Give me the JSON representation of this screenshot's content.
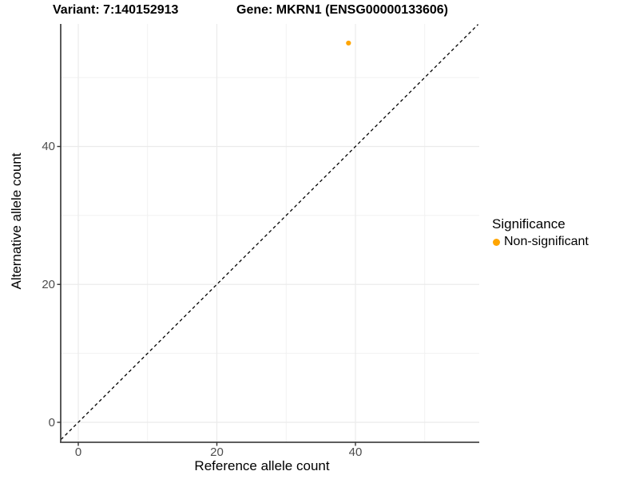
{
  "titles": {
    "variant": "Variant: 7:140152913",
    "gene": "Gene: MKRN1 (ENSG00000133606)"
  },
  "x_axis": {
    "label": "Reference allele count",
    "tick_labels": [
      "0",
      "20",
      "40"
    ]
  },
  "y_axis": {
    "label": "Alternative allele count",
    "tick_labels": [
      "0",
      "20",
      "40"
    ]
  },
  "legend": {
    "title": "Significance",
    "items": [
      {
        "label": "Non-significant",
        "color": "#FFA500"
      }
    ]
  },
  "chart_data": {
    "type": "scatter",
    "title": "Variant: 7:140152913 — Gene: MKRN1 (ENSG00000133606)",
    "xlabel": "Reference allele count",
    "ylabel": "Alternative allele count",
    "xlim": [
      -2.5,
      57.7
    ],
    "ylim": [
      -2.9,
      57.8
    ],
    "x_ticks": [
      0,
      20,
      40
    ],
    "y_ticks": [
      0,
      20,
      40
    ],
    "x_minor_ticks": [
      10,
      30,
      50
    ],
    "y_minor_ticks": [
      10,
      30,
      50
    ],
    "grid": true,
    "legend_position": "right",
    "series": [
      {
        "name": "Non-significant",
        "color": "#FFA500",
        "points": [
          {
            "x": 39,
            "y": 55
          }
        ]
      }
    ],
    "reference_line": {
      "slope": 1,
      "intercept": 0,
      "style": "dashed",
      "color": "#000000"
    },
    "style": {
      "background": "#ffffff",
      "major_grid_color": "#ebebeb",
      "minor_grid_color": "#f1f1f1",
      "axis_line_color": "#474747",
      "tick_color": "#333333",
      "point_radius": 3.1,
      "tick_label_color": "#4d4d4d"
    }
  }
}
